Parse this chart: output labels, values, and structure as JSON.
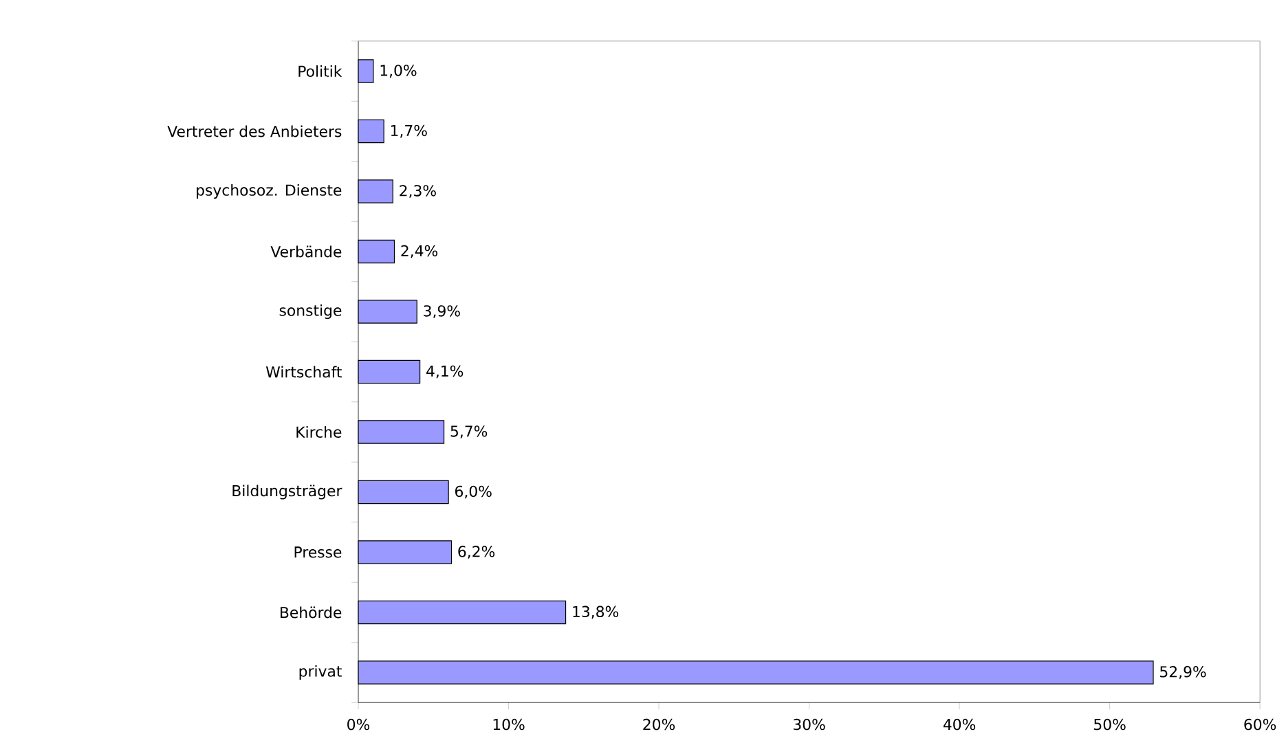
{
  "chart_data": {
    "type": "bar",
    "orientation": "horizontal",
    "categories": [
      "Politik",
      "Vertreter des Anbieters",
      "psychosoz. Dienste",
      "Verbände",
      "sonstige",
      "Wirtschaft",
      "Kirche",
      "Bildungsträger",
      "Presse",
      "Behörde",
      "privat"
    ],
    "values": [
      1.0,
      1.7,
      2.3,
      2.4,
      3.9,
      4.1,
      5.7,
      6.0,
      6.2,
      13.8,
      52.9
    ],
    "value_labels": [
      "1,0%",
      "1,7%",
      "2,3%",
      "2,4%",
      "3,9%",
      "4,1%",
      "5,7%",
      "6,0%",
      "6,2%",
      "13,8%",
      "52,9%"
    ],
    "color": "#9999ff",
    "xlim": [
      0,
      60
    ],
    "xticks": [
      {
        "value": 0,
        "label": "0%"
      },
      {
        "value": 10,
        "label": "10%"
      },
      {
        "value": 20,
        "label": "20%"
      },
      {
        "value": 30,
        "label": "30%"
      },
      {
        "value": 40,
        "label": "40%"
      },
      {
        "value": 50,
        "label": "50%"
      },
      {
        "value": 60,
        "label": "60%"
      }
    ]
  }
}
